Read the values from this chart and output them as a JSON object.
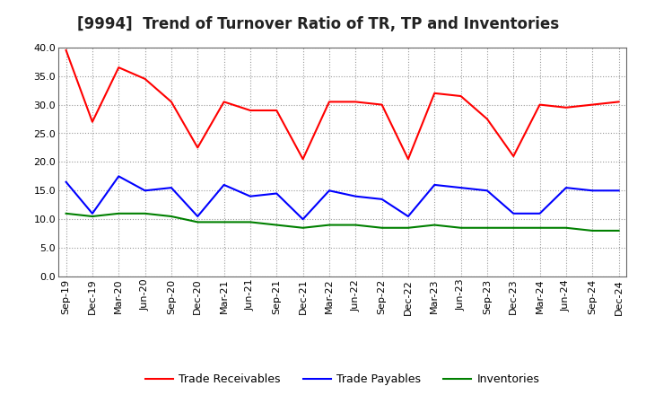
{
  "title": "[9994]  Trend of Turnover Ratio of TR, TP and Inventories",
  "x_labels": [
    "Sep-19",
    "Dec-19",
    "Mar-20",
    "Jun-20",
    "Sep-20",
    "Dec-20",
    "Mar-21",
    "Jun-21",
    "Sep-21",
    "Dec-21",
    "Mar-22",
    "Jun-22",
    "Sep-22",
    "Dec-22",
    "Mar-23",
    "Jun-23",
    "Sep-23",
    "Dec-23",
    "Mar-24",
    "Jun-24",
    "Sep-24",
    "Dec-24"
  ],
  "trade_receivables": [
    39.5,
    27.0,
    36.5,
    34.5,
    30.5,
    22.5,
    30.5,
    29.0,
    29.0,
    20.5,
    30.5,
    30.5,
    30.0,
    20.5,
    32.0,
    31.5,
    27.5,
    21.0,
    30.0,
    29.5,
    30.0,
    30.5
  ],
  "trade_payables": [
    16.5,
    11.0,
    17.5,
    15.0,
    15.5,
    10.5,
    16.0,
    14.0,
    14.5,
    10.0,
    15.0,
    14.0,
    13.5,
    10.5,
    16.0,
    15.5,
    15.0,
    11.0,
    11.0,
    15.5,
    15.0,
    15.0
  ],
  "inventories": [
    11.0,
    10.5,
    11.0,
    11.0,
    10.5,
    9.5,
    9.5,
    9.5,
    9.0,
    8.5,
    9.0,
    9.0,
    8.5,
    8.5,
    9.0,
    8.5,
    8.5,
    8.5,
    8.5,
    8.5,
    8.0,
    8.0
  ],
  "tr_color": "#FF0000",
  "tp_color": "#0000FF",
  "inv_color": "#008000",
  "ylim": [
    0.0,
    40.0
  ],
  "yticks": [
    0.0,
    5.0,
    10.0,
    15.0,
    20.0,
    25.0,
    30.0,
    35.0,
    40.0
  ],
  "ytick_labels": [
    "0.0",
    "5.0",
    "10.0",
    "15.0",
    "20.0",
    "25.0",
    "30.0",
    "35.0",
    "40.0"
  ],
  "background_color": "#FFFFFF",
  "plot_bg_color": "#FFFFFF",
  "grid_color": "#999999",
  "title_fontsize": 12,
  "legend_fontsize": 9,
  "tick_fontsize": 8
}
